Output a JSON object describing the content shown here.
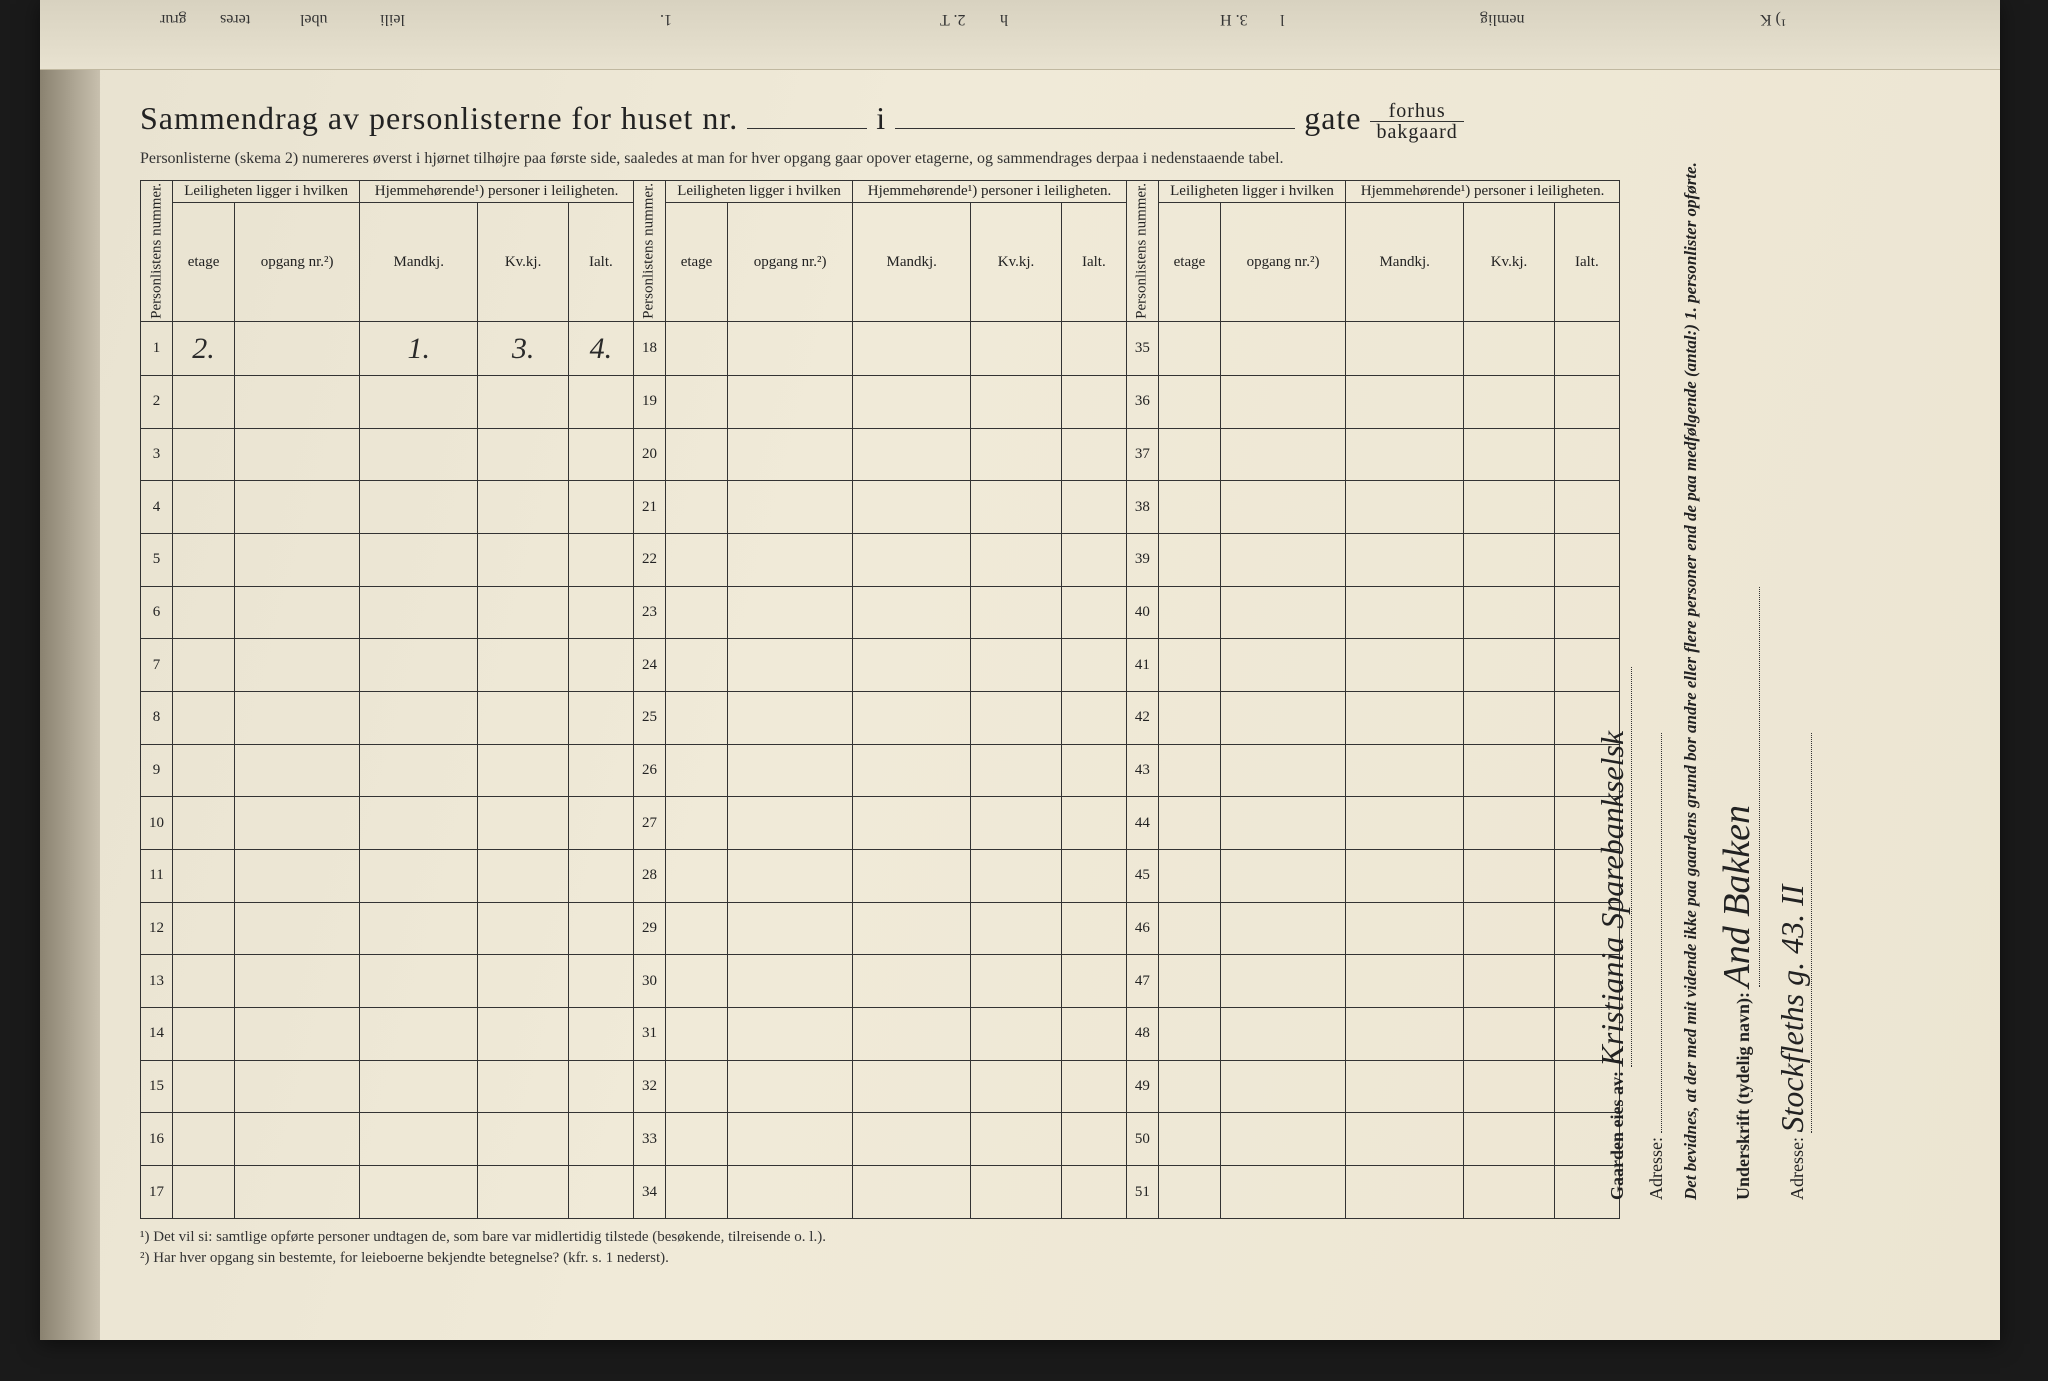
{
  "top_fragments": [
    "grur",
    "teres",
    "ubel",
    "leili",
    "1.",
    "2. T",
    "h",
    "3. H",
    "l",
    "nemlig",
    "¹) K"
  ],
  "title": {
    "prefix": "Sammendrag av personlisterne for huset nr.",
    "mid": "i",
    "suffix": "gate",
    "frac_top": "forhus",
    "frac_bot": "bakgaard"
  },
  "subtitle": "Personlisterne (skema 2) numereres øverst i hjørnet tilhøjre paa første side, saaledes at man for hver opgang gaar opover etagerne, og sammendrages derpaa i nedenstaaende tabel.",
  "headers": {
    "personlistens": "Personlistens nummer.",
    "leil_top": "Leiligheten ligger i hvilken",
    "hjem_top": "Hjemmehørende¹) personer i leiligheten.",
    "etage": "etage",
    "opgang": "opgang nr.²)",
    "mandkj": "Mandkj.",
    "kvkj": "Kv.kj.",
    "ialt": "Ialt."
  },
  "row_ranges": [
    [
      1,
      17
    ],
    [
      18,
      34
    ],
    [
      35,
      51
    ]
  ],
  "handwritten_row1": {
    "etage": "2.",
    "opgang": "",
    "mandkj": "1.",
    "kvkj": "3.",
    "ialt": "4."
  },
  "footnotes": {
    "f1": "¹) Det vil si: samtlige opførte personer undtagen de, som bare var midlertidig tilstede (besøkende, tilreisende o. l.).",
    "f2": "²) Har hver opgang sin bestemte, for leieboerne bekjendte betegnelse?",
    "f2_suffix": "(kfr. s. 1 nederst)."
  },
  "right": {
    "gaarden_label": "Gaarden eies av:",
    "gaarden_value": "Kristiania Sparebankselsk",
    "adresse1_label": "Adresse:",
    "adresse1_value": "",
    "bevidnes": "Det bevidnes, at der med mit vidende ikke paa gaardens grund bor andre eller flere personer end de paa medfølgende (antal:) 1. personlister opførte.",
    "underskrift_label": "Underskrift (tydelig navn):",
    "underskrift_value": "And Bakken",
    "adresse2_label": "Adresse:",
    "adresse2_value": "Stockfleths g. 43. II"
  },
  "colors": {
    "paper": "#ece5d2",
    "ink": "#222222",
    "rule": "#333333",
    "dotted": "#888888"
  }
}
